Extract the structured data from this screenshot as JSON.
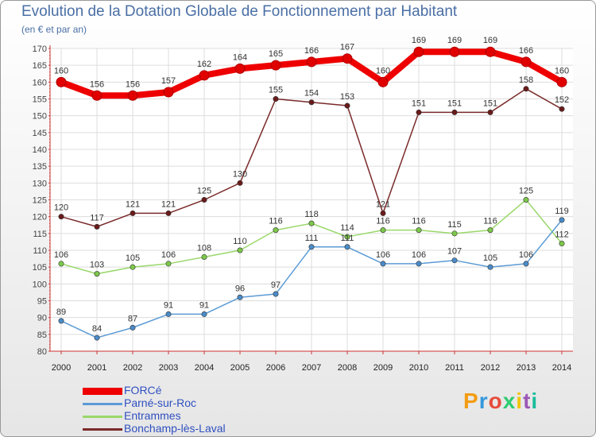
{
  "title": "Evolution de la Dotation Globale de Fonctionnement par Habitant",
  "subtitle": "(en € et par an)",
  "brand": {
    "letters": [
      "P",
      "r",
      "o",
      "x",
      "i",
      "t",
      "i"
    ],
    "colors": [
      "#f39c12",
      "#3498db",
      "#e74c3c",
      "#2ecc71",
      "#f1c40f",
      "#9b59b6",
      "#1abc9c"
    ]
  },
  "chart_data": {
    "type": "line",
    "title": "Evolution de la Dotation Globale de Fonctionnement par Habitant",
    "xlabel": "",
    "ylabel": "(en € et par an)",
    "categories": [
      "2000",
      "2001",
      "2002",
      "2003",
      "2004",
      "2005",
      "2006",
      "2007",
      "2008",
      "2009",
      "2010",
      "2011",
      "2012",
      "2013",
      "2014"
    ],
    "ylim": [
      80,
      170
    ],
    "ytick_step": 5,
    "grid": true,
    "series": [
      {
        "name": "FORCé",
        "color": "#ee0000",
        "marker": "#e00000",
        "width": 8,
        "values": [
          160,
          156,
          156,
          157,
          162,
          164,
          165,
          166,
          167,
          160,
          169,
          169,
          169,
          166,
          160
        ]
      },
      {
        "name": "Parné-sur-Roc",
        "color": "#5b9bd5",
        "marker": "#4a8bc8",
        "width": 1.5,
        "values": [
          89,
          84,
          87,
          91,
          91,
          96,
          97,
          111,
          111,
          106,
          106,
          107,
          105,
          106,
          119
        ]
      },
      {
        "name": "Entrammes",
        "color": "#9ad86a",
        "marker": "#7cc84a",
        "width": 1.5,
        "values": [
          106,
          103,
          105,
          106,
          108,
          110,
          116,
          118,
          114,
          116,
          116,
          115,
          116,
          125,
          112
        ]
      },
      {
        "name": "Bonchamp-lès-Laval",
        "color": "#7a2a2a",
        "marker": "#6a1a1a",
        "width": 1.5,
        "values": [
          120,
          117,
          121,
          121,
          125,
          130,
          155,
          154,
          153,
          121,
          151,
          151,
          151,
          158,
          152
        ]
      }
    ]
  }
}
